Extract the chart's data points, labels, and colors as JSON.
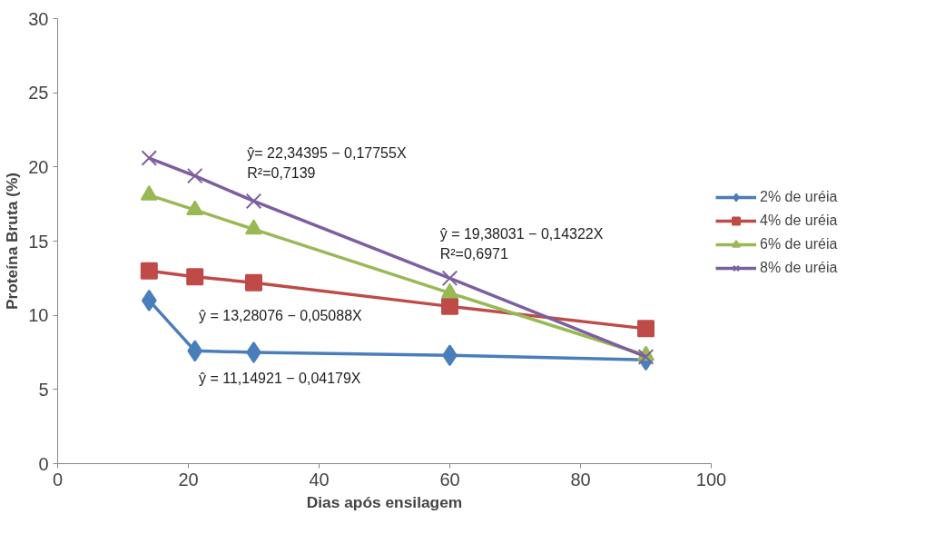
{
  "chart_data": {
    "type": "line",
    "xlabel": "Dias após ensilagem",
    "ylabel": "Proteína Bruta (%)",
    "x": [
      14,
      21,
      30,
      60,
      90
    ],
    "series": [
      {
        "name": "2% de uréia",
        "color": "#4a7ebb",
        "marker": "diamond",
        "values": [
          11.0,
          7.6,
          7.5,
          7.3,
          7.0
        ]
      },
      {
        "name": "4% de uréia",
        "color": "#be4b48",
        "marker": "square",
        "values": [
          13.0,
          12.6,
          12.2,
          10.6,
          9.1
        ]
      },
      {
        "name": "6% de uréia",
        "color": "#98b954",
        "marker": "triangle",
        "values": [
          18.1,
          17.1,
          15.8,
          11.5,
          7.3
        ]
      },
      {
        "name": "8% de uréia",
        "color": "#7d5fa0",
        "marker": "cross",
        "values": [
          20.6,
          19.4,
          17.7,
          12.5,
          7.2
        ]
      }
    ],
    "xlim": [
      0,
      100
    ],
    "ylim": [
      0,
      30
    ],
    "xticks": [
      0,
      20,
      40,
      60,
      80,
      100
    ],
    "yticks": [
      0,
      5,
      10,
      15,
      20,
      25,
      30
    ],
    "grid": false,
    "legend": "right",
    "line_style": "solid",
    "annotations": [
      "ŷ= 22,34395 − 0,17755X",
      "R²=0,7139",
      "ŷ = 19,38031 − 0,14322X",
      "R²=0,6971",
      "ŷ = 13,28076 − 0,05088X",
      "ŷ = 11,14921 − 0,04179X"
    ]
  }
}
